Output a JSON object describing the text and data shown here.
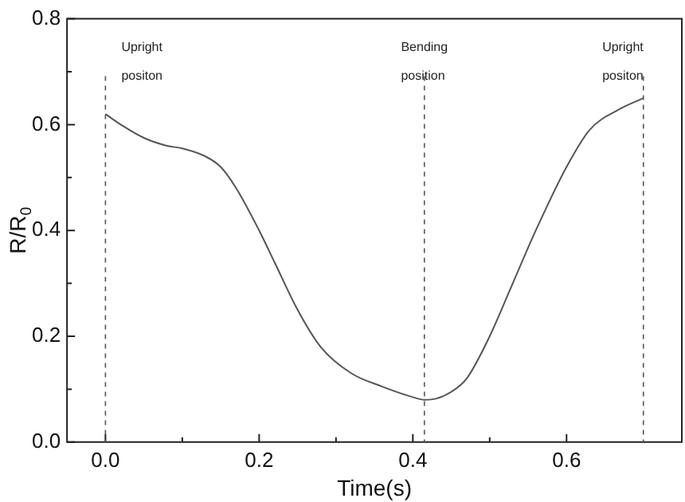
{
  "chart_data": {
    "type": "line",
    "xlabel": "Time(s)",
    "ylabel": "R/R$_{0}$",
    "xlim": [
      -0.05,
      0.75
    ],
    "xticks": [
      {
        "value": 0,
        "label": "0.0"
      },
      0.2,
      0.4,
      0.6
    ],
    "ylim": [
      0,
      0.8
    ],
    "yticks": [
      {
        "value": 0,
        "label": "0.0"
      },
      0.2,
      0.4,
      0.6,
      0.8
    ],
    "grid": false,
    "legend": false,
    "marker": "none",
    "line_style": "solid",
    "series": [
      {
        "color": "#555555",
        "x": [
          0,
          0.02,
          0.05,
          0.08,
          0.1,
          0.13,
          0.15,
          0.17,
          0.2,
          0.22,
          0.25,
          0.28,
          0.32,
          0.36,
          0.4,
          0.415,
          0.43,
          0.45,
          0.47,
          0.5,
          0.53,
          0.56,
          0.6,
          0.63,
          0.67,
          0.7
        ],
        "values": [
          0.62,
          0.6,
          0.575,
          0.56,
          0.555,
          0.54,
          0.52,
          0.48,
          0.4,
          0.34,
          0.25,
          0.18,
          0.13,
          0.105,
          0.085,
          0.08,
          0.082,
          0.095,
          0.12,
          0.2,
          0.3,
          0.4,
          0.52,
          0.59,
          0.63,
          0.65
        ]
      }
    ],
    "ref_lines": [
      {
        "axis": "x",
        "value": 0,
        "label": "Upright\npositon",
        "color": "#555555",
        "line_style": "dashed"
      },
      {
        "axis": "x",
        "value": 0.415,
        "label": "Bending\nposition",
        "color": "#555555",
        "line_style": "dashed"
      },
      {
        "axis": "x",
        "value": 0.7,
        "label": "Upright\npositon",
        "color": "#555555",
        "line_style": "dashed"
      }
    ]
  }
}
